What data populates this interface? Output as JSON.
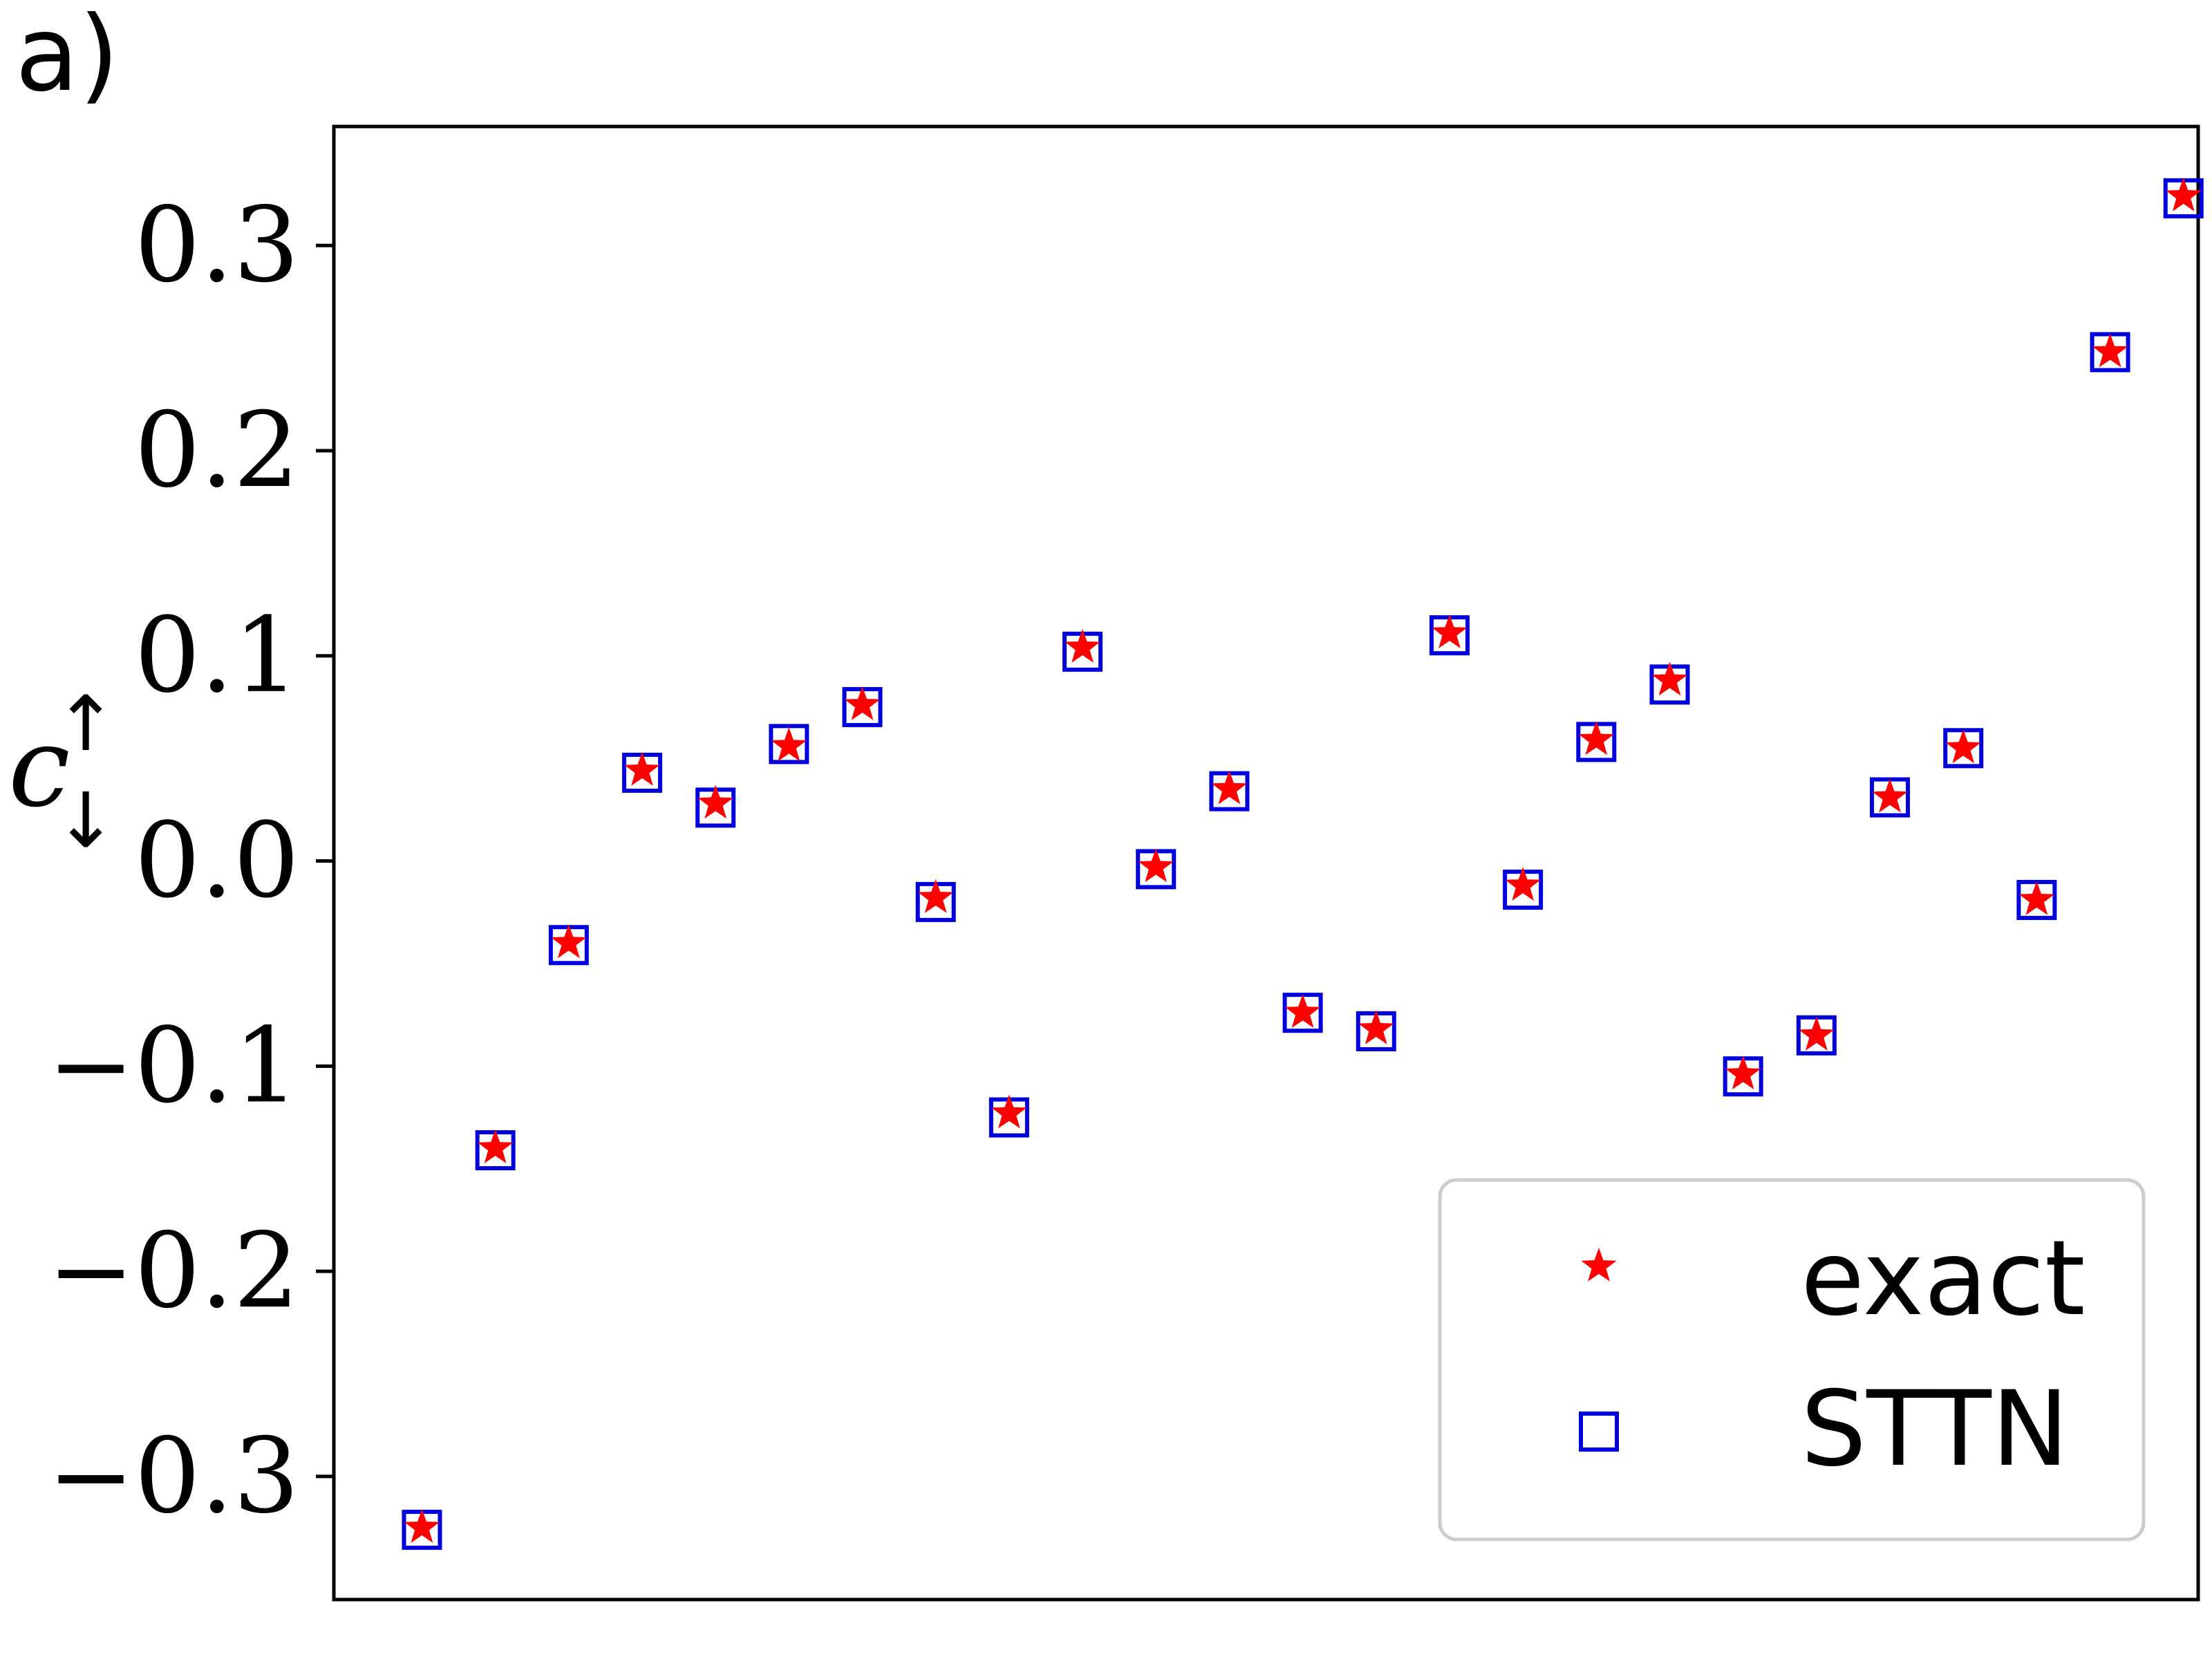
{
  "panel_label": "a)",
  "colors": {
    "exact": "#ff0000",
    "sttn": "#0000dd",
    "axes": "#000000",
    "legend_border": "#cccccc"
  },
  "chart_data": {
    "type": "scatter",
    "title": "",
    "xlabel": "",
    "ylabel": "c",
    "ylabel_arrows": [
      "↑",
      "↓"
    ],
    "ylim": [
      -0.36,
      0.358
    ],
    "xlim": [
      -0.2,
      25.2
    ],
    "grid": false,
    "yticks": [
      0.3,
      0.2,
      0.1,
      0.0,
      -0.1,
      -0.2,
      -0.3
    ],
    "ytick_labels": [
      "0.3",
      "0.2",
      "0.1",
      "0.0",
      "−0.1",
      "−0.2",
      "−0.3"
    ],
    "legend_position": "bottom-right",
    "x": [
      1,
      2,
      3,
      4,
      5,
      6,
      7,
      8,
      9,
      10,
      11,
      12,
      13,
      14,
      15,
      16,
      17,
      18,
      19,
      20,
      21,
      22,
      23,
      24,
      25
    ],
    "series": [
      {
        "name": "exact",
        "marker": "star",
        "values": [
          -0.325,
          -0.14,
          -0.04,
          0.044,
          0.028,
          0.056,
          0.076,
          -0.018,
          -0.123,
          0.104,
          -0.003,
          0.035,
          -0.074,
          -0.082,
          0.111,
          -0.012,
          0.059,
          0.088,
          -0.104,
          -0.085,
          0.031,
          0.055,
          -0.019,
          0.248,
          0.324
        ]
      },
      {
        "name": "STTN",
        "marker": "square",
        "values": [
          -0.326,
          -0.141,
          -0.041,
          0.043,
          0.026,
          0.057,
          0.075,
          -0.02,
          -0.125,
          0.102,
          -0.004,
          0.034,
          -0.074,
          -0.083,
          0.11,
          -0.014,
          0.058,
          0.086,
          -0.105,
          -0.085,
          0.031,
          0.055,
          -0.019,
          0.248,
          0.323
        ]
      }
    ]
  }
}
